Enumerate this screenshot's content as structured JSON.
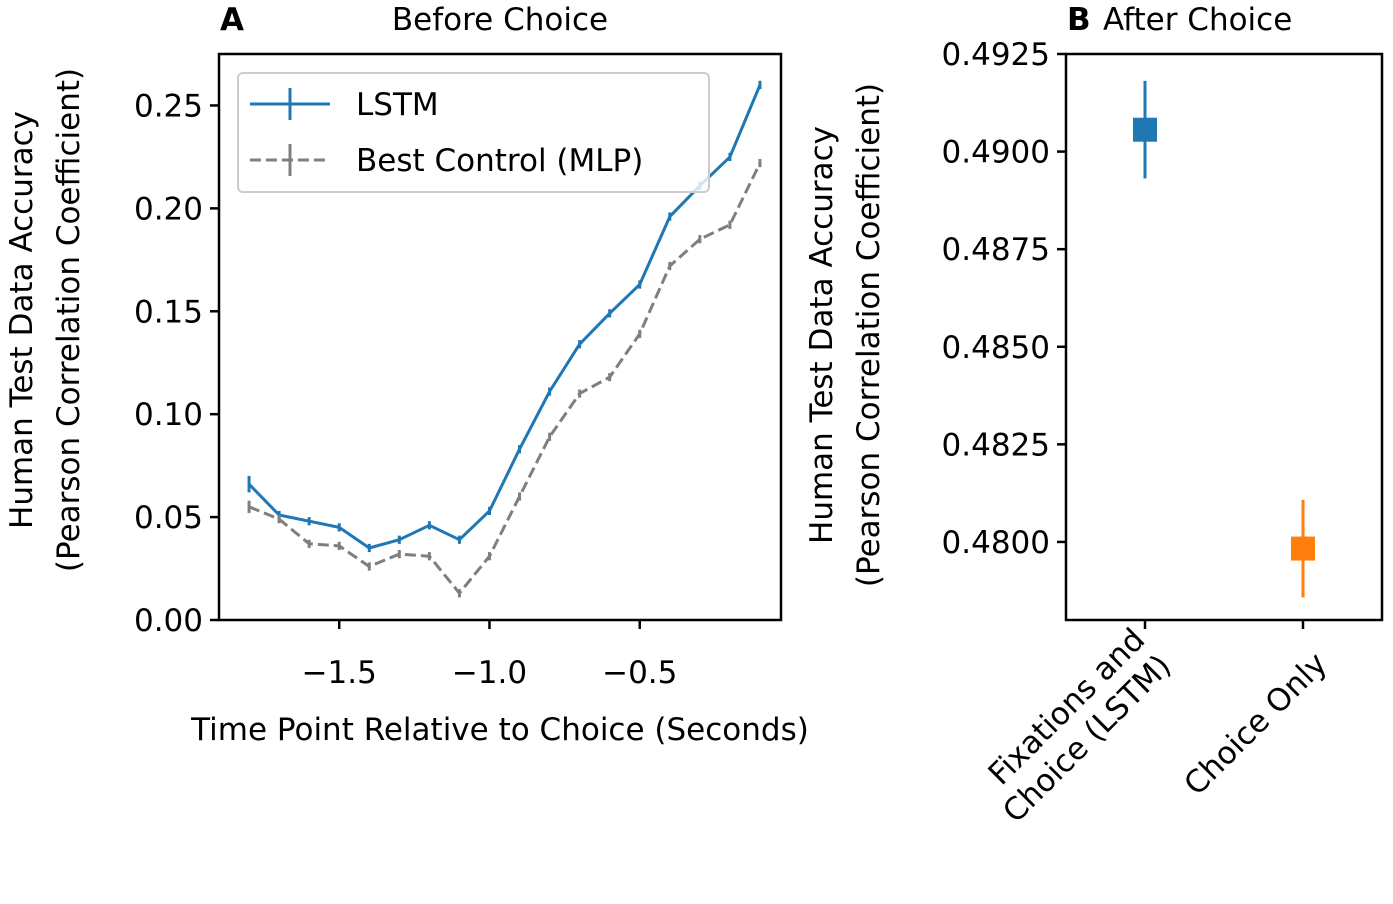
{
  "chart_data": [
    {
      "type": "line",
      "panel_label": "A",
      "title": "Before Choice",
      "xlabel": "Time Point Relative to Choice (Seconds)",
      "ylabel_line1": "Human Test Data Accuracy",
      "ylabel_line2": "(Pearson Correlation Coefficient)",
      "xlim": [
        -1.9,
        -0.03
      ],
      "ylim": [
        0,
        0.275
      ],
      "xticks": [
        -1.5,
        -1.0,
        -0.5
      ],
      "xtick_labels": [
        "−1.5",
        "−1.0",
        "−0.5"
      ],
      "yticks": [
        0.0,
        0.05,
        0.1,
        0.15,
        0.2,
        0.25
      ],
      "ytick_labels": [
        "0.00",
        "0.05",
        "0.10",
        "0.15",
        "0.20",
        "0.25"
      ],
      "legend_position": "top-left",
      "x": [
        -1.8,
        -1.7,
        -1.6,
        -1.5,
        -1.4,
        -1.3,
        -1.2,
        -1.1,
        -1.0,
        -0.9,
        -0.8,
        -0.7,
        -0.6,
        -0.5,
        -0.4,
        -0.3,
        -0.2,
        -0.1
      ],
      "series": [
        {
          "name": "LSTM",
          "color": "#1f77b4",
          "style": "solid",
          "values": [
            0.066,
            0.051,
            0.048,
            0.045,
            0.035,
            0.039,
            0.046,
            0.039,
            0.053,
            0.083,
            0.111,
            0.134,
            0.149,
            0.163,
            0.196,
            0.211,
            0.225,
            0.26
          ],
          "errors": [
            0.004,
            0.002,
            0.002,
            0.002,
            0.002,
            0.002,
            0.002,
            0.002,
            0.002,
            0.002,
            0.002,
            0.002,
            0.002,
            0.002,
            0.002,
            0.002,
            0.002,
            0.002
          ]
        },
        {
          "name": "Best Control (MLP)",
          "color": "#7f7f7f",
          "style": "dashed",
          "values": [
            0.055,
            0.049,
            0.037,
            0.036,
            0.026,
            0.032,
            0.031,
            0.013,
            0.031,
            0.06,
            0.089,
            0.11,
            0.118,
            0.139,
            0.172,
            0.185,
            0.192,
            0.222
          ],
          "errors": [
            0.003,
            0.002,
            0.002,
            0.002,
            0.002,
            0.002,
            0.002,
            0.002,
            0.002,
            0.002,
            0.002,
            0.002,
            0.002,
            0.002,
            0.002,
            0.002,
            0.002,
            0.002
          ]
        }
      ]
    },
    {
      "type": "scatter",
      "panel_label": "B",
      "title": "After Choice",
      "ylabel_line1": "Human Test Data Accuracy",
      "ylabel_line2": "(Pearson Correlation Coefficient)",
      "ylim": [
        0.478,
        0.4925
      ],
      "yticks": [
        0.48,
        0.4825,
        0.485,
        0.4875,
        0.49,
        0.4925
      ],
      "ytick_labels": [
        "0.4800",
        "0.4825",
        "0.4850",
        "0.4875",
        "0.4900",
        "0.4925"
      ],
      "categories": [
        {
          "line1": "Fixations and",
          "line2": "Choice (LSTM)"
        },
        {
          "line1": "Choice Only",
          "line2": ""
        }
      ],
      "values": [
        0.49056,
        0.47983
      ],
      "errors": [
        0.00125,
        0.00125
      ],
      "colors": [
        "#1f77b4",
        "#ff7f0e"
      ]
    }
  ]
}
